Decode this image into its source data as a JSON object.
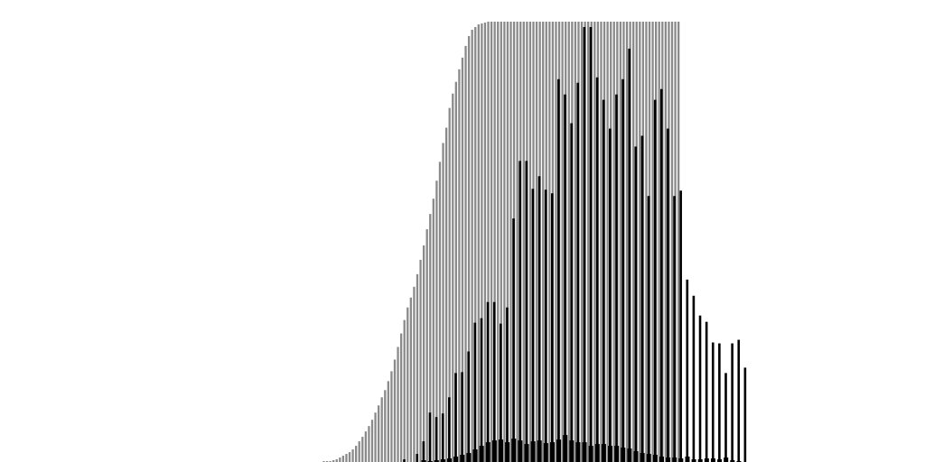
{
  "chart_data": {
    "type": "bar",
    "title": "",
    "xlabel": "",
    "ylabel": "",
    "axes_visible": false,
    "grid": false,
    "legend": "none",
    "ylim": [
      0,
      490
    ],
    "colors": {
      "background": "#ffffff",
      "cumulative": "#8a8a8a",
      "primary": "#000000",
      "secondary": "#000000"
    },
    "series": [
      {
        "role": "cumulative",
        "note_values_start_index": 10,
        "values": [
          1,
          1,
          1,
          2,
          3,
          5,
          7,
          9,
          11,
          14,
          18,
          23,
          28,
          34,
          40,
          47,
          55,
          63,
          72,
          80,
          90,
          101,
          114,
          128,
          143,
          158,
          172,
          183,
          195,
          209,
          225,
          241,
          259,
          276,
          293,
          313,
          334,
          355,
          372,
          394,
          410,
          423,
          437,
          450,
          463,
          474,
          481,
          484,
          487,
          488,
          489,
          490,
          490,
          490,
          490,
          490,
          490,
          490,
          490,
          490,
          490,
          490,
          490,
          490,
          490,
          490,
          490,
          490,
          490,
          490,
          490,
          490,
          490,
          490,
          490,
          490,
          490,
          490,
          490,
          490,
          490,
          490,
          490,
          490,
          490,
          490,
          490,
          490,
          490,
          490,
          490,
          490,
          490,
          490,
          490,
          490,
          490,
          490,
          490,
          490,
          490,
          490,
          490,
          490,
          490,
          490,
          490,
          490,
          490,
          490,
          490
        ]
      },
      {
        "role": "primary",
        "values": [
          0,
          0,
          0,
          0,
          0,
          0,
          0,
          0,
          0,
          0,
          3,
          0,
          9,
          23,
          55,
          50,
          54,
          72,
          99,
          100,
          123,
          155,
          160,
          178,
          178,
          154,
          172,
          271,
          335,
          335,
          304,
          318,
          303,
          299,
          426,
          409,
          377,
          422,
          484,
          484,
          428,
          403,
          371,
          409,
          426,
          460,
          351,
          363,
          296,
          403,
          415,
          371,
          296,
          302,
          203,
          185,
          163,
          156,
          133,
          132,
          99,
          132,
          136,
          105
        ]
      },
      {
        "role": "secondary",
        "values": [
          0,
          0,
          0,
          0,
          0,
          0,
          0,
          0,
          0,
          0,
          0,
          0,
          0,
          2,
          1,
          2,
          3,
          4,
          6,
          8,
          10,
          14,
          18,
          22,
          24,
          25,
          22,
          26,
          24,
          20,
          23,
          24,
          21,
          22,
          25,
          30,
          24,
          22,
          22,
          18,
          20,
          20,
          18,
          18,
          16,
          15,
          12,
          10,
          9,
          8,
          6,
          5,
          5,
          4,
          6,
          3,
          3,
          4,
          4,
          3,
          5,
          2,
          1,
          0
        ]
      }
    ]
  }
}
